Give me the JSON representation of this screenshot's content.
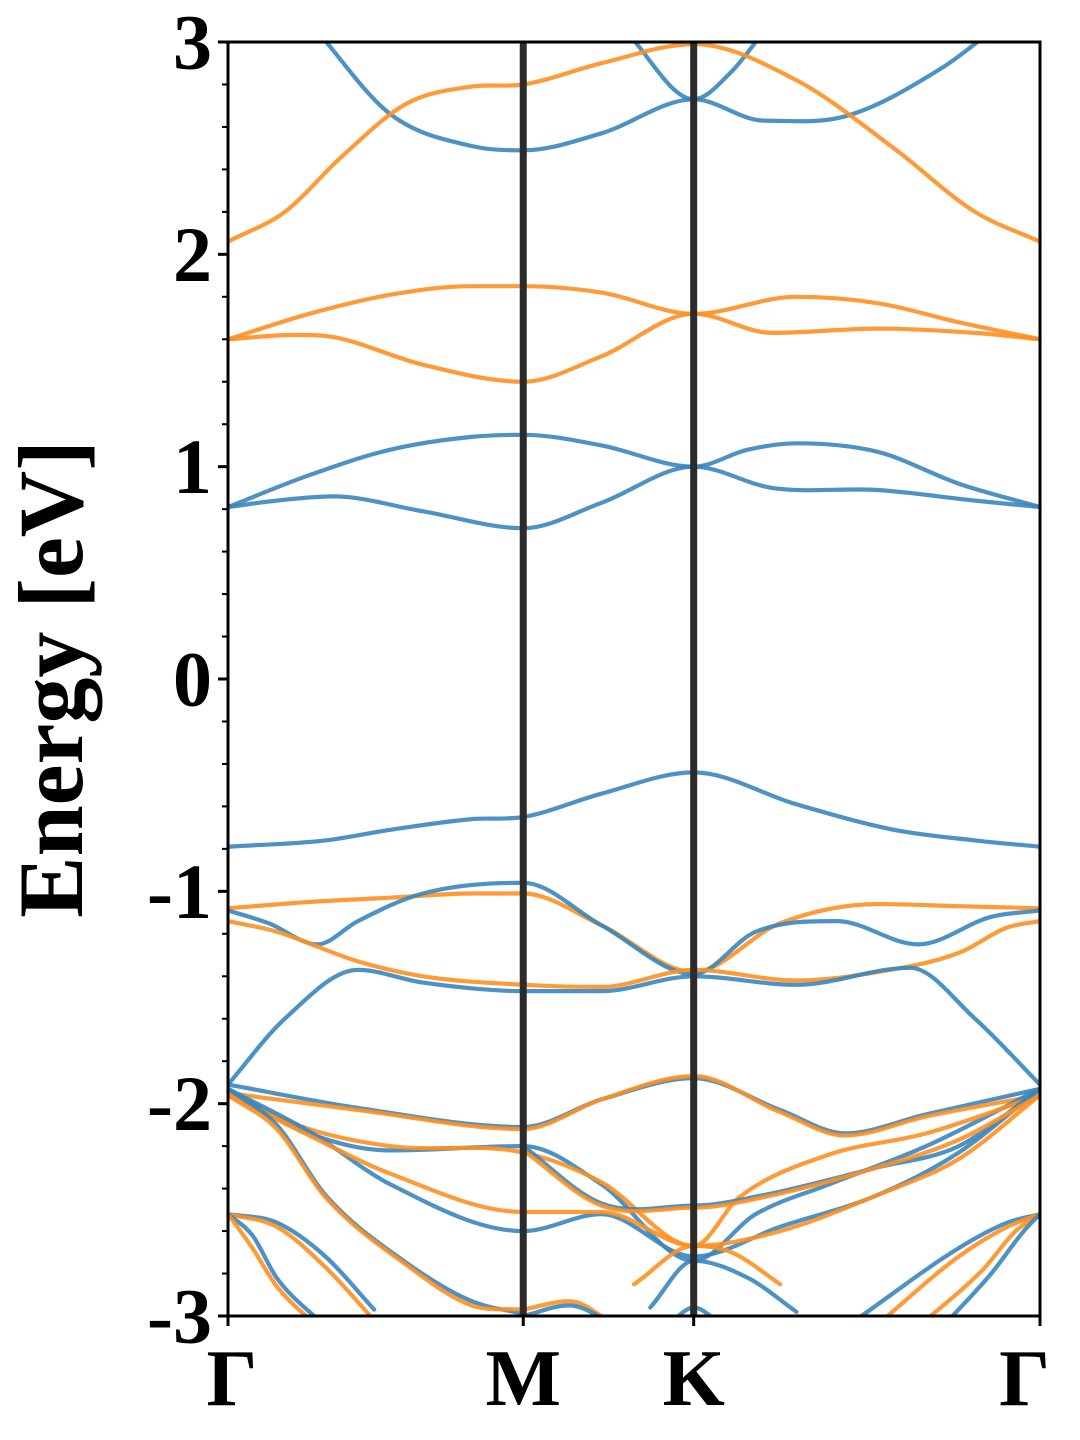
{
  "chart_data": {
    "type": "line",
    "title": "",
    "xlabel": "",
    "ylabel": "Energy [eV]",
    "ylim": [
      -3,
      3
    ],
    "yticks": [
      -3,
      -2,
      -1,
      0,
      1,
      2,
      3
    ],
    "ytick_labels": [
      "-3",
      "-2",
      "-1",
      "0",
      "1",
      "2",
      "3"
    ],
    "y_minor_step": 0.2,
    "k_points": [
      {
        "label": "Γ",
        "x": 0.0
      },
      {
        "label": "M",
        "x": 0.3636
      },
      {
        "label": "K",
        "x": 0.5735
      },
      {
        "label": "Γ",
        "x": 1.0
      }
    ],
    "grid": false,
    "legend": "none",
    "colors": {
      "spin_a": "#3a86be",
      "spin_b": "#ff9021",
      "k_lines": "#2b2b2b"
    },
    "series": [
      {
        "color_key": "spin_a",
        "x": [
          0,
          0.06,
          0.13,
          0.24,
          0.3636,
          0.46,
          0.5735,
          0.67,
          0.8,
          0.92,
          1.0
        ],
        "values": [
          0.81,
          0.84,
          0.86,
          0.79,
          0.71,
          0.83,
          1.0,
          0.9,
          0.89,
          0.84,
          0.81
        ]
      },
      {
        "color_key": "spin_a",
        "x": [
          0,
          0.1,
          0.2,
          0.3,
          0.3636,
          0.46,
          0.5735,
          0.64,
          0.7,
          0.8,
          0.9,
          1.0
        ],
        "values": [
          0.81,
          0.96,
          1.08,
          1.14,
          1.15,
          1.1,
          1.0,
          1.08,
          1.11,
          1.07,
          0.92,
          0.81
        ]
      },
      {
        "color_key": "spin_b",
        "x": [
          0,
          0.08,
          0.13,
          0.24,
          0.3636,
          0.46,
          0.5735,
          0.67,
          0.8,
          0.92,
          1.0
        ],
        "values": [
          1.6,
          1.62,
          1.61,
          1.48,
          1.4,
          1.52,
          1.72,
          1.63,
          1.65,
          1.63,
          1.6
        ]
      },
      {
        "color_key": "spin_b",
        "x": [
          0,
          0.1,
          0.2,
          0.3,
          0.3636,
          0.46,
          0.5735,
          0.7,
          0.8,
          0.9,
          1.0
        ],
        "values": [
          1.6,
          1.72,
          1.81,
          1.85,
          1.85,
          1.82,
          1.72,
          1.8,
          1.77,
          1.68,
          1.6
        ]
      },
      {
        "color_key": "spin_a",
        "x": [
          0.11,
          0.2,
          0.3,
          0.3636,
          0.46,
          0.5735,
          0.66,
          0.76,
          0.88,
          0.94
        ],
        "values": [
          3.05,
          2.66,
          2.51,
          2.49,
          2.57,
          2.73,
          2.63,
          2.65,
          2.88,
          3.05
        ]
      },
      {
        "color_key": "spin_a",
        "x": [
          0.49,
          0.5735,
          0.62,
          0.66
        ],
        "values": [
          3.05,
          2.73,
          2.86,
          3.05
        ]
      },
      {
        "color_key": "spin_b",
        "x": [
          0,
          0.07,
          0.14,
          0.22,
          0.3,
          0.3636,
          0.46,
          0.5735,
          0.7,
          0.82,
          0.92,
          1.0
        ],
        "values": [
          2.06,
          2.2,
          2.46,
          2.71,
          2.79,
          2.8,
          2.9,
          2.99,
          2.82,
          2.5,
          2.2,
          2.06
        ]
      },
      {
        "color_key": "spin_a",
        "x": [
          0,
          0.12,
          0.2,
          0.3,
          0.3636,
          0.46,
          0.5735,
          0.7,
          0.82,
          0.92,
          1.0
        ],
        "values": [
          -0.79,
          -0.76,
          -0.71,
          -0.66,
          -0.65,
          -0.54,
          -0.44,
          -0.59,
          -0.71,
          -0.76,
          -0.79
        ]
      },
      {
        "color_key": "spin_b",
        "x": [
          0,
          0.1,
          0.2,
          0.3,
          0.3636,
          0.46,
          0.5735,
          0.68,
          0.8,
          0.9,
          1.0
        ],
        "values": [
          -1.08,
          -1.05,
          -1.03,
          -1.01,
          -1.01,
          -1.16,
          -1.38,
          -1.15,
          -1.06,
          -1.07,
          -1.08
        ]
      },
      {
        "color_key": "spin_a",
        "x": [
          0,
          0.05,
          0.11,
          0.16,
          0.24,
          0.3636,
          0.46,
          0.5735,
          0.65,
          0.75,
          0.85,
          0.94,
          1.0
        ],
        "values": [
          -1.09,
          -1.15,
          -1.25,
          -1.14,
          -1.01,
          -0.96,
          -1.16,
          -1.39,
          -1.19,
          -1.14,
          -1.25,
          -1.12,
          -1.09
        ]
      },
      {
        "color_key": "spin_b",
        "x": [
          0,
          0.06,
          0.16,
          0.24,
          0.3636,
          0.46,
          0.5735,
          0.7,
          0.8,
          0.9,
          0.96,
          1.0
        ],
        "values": [
          -1.14,
          -1.19,
          -1.33,
          -1.4,
          -1.44,
          -1.45,
          -1.37,
          -1.42,
          -1.38,
          -1.29,
          -1.17,
          -1.14
        ]
      },
      {
        "color_key": "spin_a",
        "x": [
          0,
          0.07,
          0.16,
          0.24,
          0.3636,
          0.46,
          0.5735,
          0.7,
          0.84,
          0.92,
          1.0
        ],
        "values": [
          -1.91,
          -1.6,
          -1.37,
          -1.43,
          -1.47,
          -1.47,
          -1.4,
          -1.44,
          -1.36,
          -1.6,
          -1.91
        ]
      },
      {
        "color_key": "spin_a",
        "x": [
          0,
          0.16,
          0.3636,
          0.46,
          0.5735,
          0.68,
          0.76,
          0.86,
          1.0
        ],
        "values": [
          -1.91,
          -2.02,
          -2.11,
          -1.98,
          -1.88,
          -2.03,
          -2.14,
          -2.05,
          -1.93
        ]
      },
      {
        "color_key": "spin_b",
        "x": [
          0,
          0.16,
          0.3636,
          0.46,
          0.5735,
          0.68,
          0.76,
          0.86,
          1.0
        ],
        "values": [
          -1.95,
          -2.03,
          -2.12,
          -1.98,
          -1.87,
          -2.04,
          -2.15,
          -2.06,
          -1.96
        ]
      },
      {
        "color_key": "spin_a",
        "x": [
          0,
          0.1,
          0.2,
          0.3636,
          0.46,
          0.5735,
          0.65,
          0.74,
          0.86,
          1.0
        ],
        "values": [
          -1.93,
          -2.14,
          -2.22,
          -2.2,
          -2.38,
          -2.74,
          -2.52,
          -2.38,
          -2.2,
          -1.93
        ]
      },
      {
        "color_key": "spin_b",
        "x": [
          0,
          0.1,
          0.2,
          0.3636,
          0.46,
          0.5735,
          0.63,
          0.74,
          0.86,
          1.0
        ],
        "values": [
          -1.96,
          -2.12,
          -2.2,
          -2.23,
          -2.37,
          -2.67,
          -2.44,
          -2.24,
          -2.14,
          -1.96
        ]
      },
      {
        "color_key": "spin_a",
        "x": [
          0,
          0.1,
          0.2,
          0.3636,
          0.46,
          0.5735,
          0.68,
          0.8,
          0.9,
          1.0
        ],
        "values": [
          -1.93,
          -2.13,
          -2.38,
          -2.6,
          -2.52,
          -2.72,
          -2.58,
          -2.43,
          -2.23,
          -1.93
        ]
      },
      {
        "color_key": "spin_b",
        "x": [
          0,
          0.1,
          0.2,
          0.3636,
          0.46,
          0.5735,
          0.68,
          0.8,
          0.9,
          1.0
        ],
        "values": [
          -1.96,
          -2.15,
          -2.33,
          -2.51,
          -2.51,
          -2.67,
          -2.6,
          -2.43,
          -2.26,
          -1.96
        ]
      },
      {
        "color_key": "spin_a",
        "x": [
          0.3636,
          0.46,
          0.5735,
          0.66,
          0.8,
          0.9,
          1.0
        ],
        "values": [
          -2.2,
          -2.47,
          -2.48,
          -2.43,
          -2.3,
          -2.2,
          -1.93
        ]
      },
      {
        "color_key": "spin_b",
        "x": [
          0.3636,
          0.46,
          0.5735,
          0.66,
          0.8,
          0.9,
          1.0
        ],
        "values": [
          -2.22,
          -2.48,
          -2.49,
          -2.44,
          -2.3,
          -2.17,
          -1.96
        ]
      },
      {
        "color_key": "spin_a",
        "x": [
          0,
          0.06,
          0.12,
          0.22,
          0.3,
          0.3636
        ],
        "values": [
          -1.93,
          -2.1,
          -2.43,
          -2.75,
          -2.93,
          -2.99
        ]
      },
      {
        "color_key": "spin_b",
        "x": [
          0,
          0.06,
          0.12,
          0.22,
          0.3,
          0.3636
        ],
        "values": [
          -1.96,
          -2.12,
          -2.44,
          -2.76,
          -2.95,
          -2.97
        ]
      },
      {
        "color_key": "spin_a",
        "x": [
          0,
          0.06,
          0.12,
          0.18
        ],
        "values": [
          -2.52,
          -2.56,
          -2.72,
          -2.97
        ]
      },
      {
        "color_key": "spin_b",
        "x": [
          0,
          0.06,
          0.12,
          0.18
        ],
        "values": [
          -2.52,
          -2.58,
          -2.77,
          -3.02
        ]
      },
      {
        "color_key": "spin_a",
        "x": [
          0,
          0.03,
          0.06,
          0.12
        ],
        "values": [
          -2.52,
          -2.62,
          -2.82,
          -3.05
        ]
      },
      {
        "color_key": "spin_b",
        "x": [
          0,
          0.03,
          0.06,
          0.11
        ],
        "values": [
          -2.52,
          -2.68,
          -2.86,
          -3.05
        ]
      },
      {
        "color_key": "spin_a",
        "x": [
          0.78,
          0.9,
          0.96,
          1.0
        ],
        "values": [
          -3.0,
          -2.68,
          -2.56,
          -2.52
        ]
      },
      {
        "color_key": "spin_b",
        "x": [
          0.8,
          0.9,
          0.96,
          1.0
        ],
        "values": [
          -3.04,
          -2.72,
          -2.58,
          -2.52
        ]
      },
      {
        "color_key": "spin_b",
        "x": [
          0.85,
          0.93,
          0.97,
          1.0
        ],
        "values": [
          -3.05,
          -2.78,
          -2.6,
          -2.52
        ]
      },
      {
        "color_key": "spin_a",
        "x": [
          0.88,
          0.94,
          0.98,
          1.0
        ],
        "values": [
          -3.05,
          -2.8,
          -2.6,
          -2.52
        ]
      },
      {
        "color_key": "spin_b",
        "x": [
          0.5,
          0.5735,
          0.62,
          0.68
        ],
        "values": [
          -2.85,
          -2.67,
          -2.7,
          -2.85
        ]
      },
      {
        "color_key": "spin_a",
        "x": [
          0.52,
          0.5735,
          0.64,
          0.7
        ],
        "values": [
          -2.96,
          -2.74,
          -2.82,
          -2.98
        ]
      },
      {
        "color_key": "spin_a",
        "x": [
          0.54,
          0.5735,
          0.61
        ],
        "values": [
          -3.05,
          -2.96,
          -3.05
        ]
      },
      {
        "color_key": "spin_b",
        "x": [
          0.3636,
          0.42,
          0.48
        ],
        "values": [
          -2.97,
          -2.93,
          -3.05
        ]
      },
      {
        "color_key": "spin_a",
        "x": [
          0.3636,
          0.42,
          0.48
        ],
        "values": [
          -3.0,
          -2.95,
          -3.05
        ]
      }
    ]
  }
}
